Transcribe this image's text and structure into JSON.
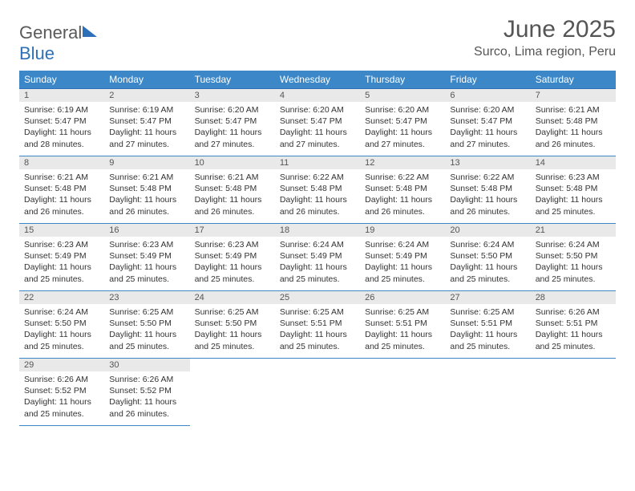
{
  "logo": {
    "word1": "General",
    "word2": "Blue"
  },
  "header": {
    "month_year": "June 2025",
    "location": "Surco, Lima region, Peru"
  },
  "colors": {
    "header_bg": "#3b87c8",
    "header_text": "#ffffff",
    "daynum_bg": "#e9e9e9",
    "border": "#3b87c8",
    "title_text": "#555555",
    "body_text": "#333333"
  },
  "weekdays": [
    "Sunday",
    "Monday",
    "Tuesday",
    "Wednesday",
    "Thursday",
    "Friday",
    "Saturday"
  ],
  "days": {
    "1": {
      "sunrise": "6:19 AM",
      "sunset": "5:47 PM",
      "daylight": "11 hours and 28 minutes."
    },
    "2": {
      "sunrise": "6:19 AM",
      "sunset": "5:47 PM",
      "daylight": "11 hours and 27 minutes."
    },
    "3": {
      "sunrise": "6:20 AM",
      "sunset": "5:47 PM",
      "daylight": "11 hours and 27 minutes."
    },
    "4": {
      "sunrise": "6:20 AM",
      "sunset": "5:47 PM",
      "daylight": "11 hours and 27 minutes."
    },
    "5": {
      "sunrise": "6:20 AM",
      "sunset": "5:47 PM",
      "daylight": "11 hours and 27 minutes."
    },
    "6": {
      "sunrise": "6:20 AM",
      "sunset": "5:47 PM",
      "daylight": "11 hours and 27 minutes."
    },
    "7": {
      "sunrise": "6:21 AM",
      "sunset": "5:48 PM",
      "daylight": "11 hours and 26 minutes."
    },
    "8": {
      "sunrise": "6:21 AM",
      "sunset": "5:48 PM",
      "daylight": "11 hours and 26 minutes."
    },
    "9": {
      "sunrise": "6:21 AM",
      "sunset": "5:48 PM",
      "daylight": "11 hours and 26 minutes."
    },
    "10": {
      "sunrise": "6:21 AM",
      "sunset": "5:48 PM",
      "daylight": "11 hours and 26 minutes."
    },
    "11": {
      "sunrise": "6:22 AM",
      "sunset": "5:48 PM",
      "daylight": "11 hours and 26 minutes."
    },
    "12": {
      "sunrise": "6:22 AM",
      "sunset": "5:48 PM",
      "daylight": "11 hours and 26 minutes."
    },
    "13": {
      "sunrise": "6:22 AM",
      "sunset": "5:48 PM",
      "daylight": "11 hours and 26 minutes."
    },
    "14": {
      "sunrise": "6:23 AM",
      "sunset": "5:48 PM",
      "daylight": "11 hours and 25 minutes."
    },
    "15": {
      "sunrise": "6:23 AM",
      "sunset": "5:49 PM",
      "daylight": "11 hours and 25 minutes."
    },
    "16": {
      "sunrise": "6:23 AM",
      "sunset": "5:49 PM",
      "daylight": "11 hours and 25 minutes."
    },
    "17": {
      "sunrise": "6:23 AM",
      "sunset": "5:49 PM",
      "daylight": "11 hours and 25 minutes."
    },
    "18": {
      "sunrise": "6:24 AM",
      "sunset": "5:49 PM",
      "daylight": "11 hours and 25 minutes."
    },
    "19": {
      "sunrise": "6:24 AM",
      "sunset": "5:49 PM",
      "daylight": "11 hours and 25 minutes."
    },
    "20": {
      "sunrise": "6:24 AM",
      "sunset": "5:50 PM",
      "daylight": "11 hours and 25 minutes."
    },
    "21": {
      "sunrise": "6:24 AM",
      "sunset": "5:50 PM",
      "daylight": "11 hours and 25 minutes."
    },
    "22": {
      "sunrise": "6:24 AM",
      "sunset": "5:50 PM",
      "daylight": "11 hours and 25 minutes."
    },
    "23": {
      "sunrise": "6:25 AM",
      "sunset": "5:50 PM",
      "daylight": "11 hours and 25 minutes."
    },
    "24": {
      "sunrise": "6:25 AM",
      "sunset": "5:50 PM",
      "daylight": "11 hours and 25 minutes."
    },
    "25": {
      "sunrise": "6:25 AM",
      "sunset": "5:51 PM",
      "daylight": "11 hours and 25 minutes."
    },
    "26": {
      "sunrise": "6:25 AM",
      "sunset": "5:51 PM",
      "daylight": "11 hours and 25 minutes."
    },
    "27": {
      "sunrise": "6:25 AM",
      "sunset": "5:51 PM",
      "daylight": "11 hours and 25 minutes."
    },
    "28": {
      "sunrise": "6:26 AM",
      "sunset": "5:51 PM",
      "daylight": "11 hours and 25 minutes."
    },
    "29": {
      "sunrise": "6:26 AM",
      "sunset": "5:52 PM",
      "daylight": "11 hours and 25 minutes."
    },
    "30": {
      "sunrise": "6:26 AM",
      "sunset": "5:52 PM",
      "daylight": "11 hours and 26 minutes."
    }
  },
  "labels": {
    "sunrise": "Sunrise: ",
    "sunset": "Sunset: ",
    "daylight": "Daylight: "
  },
  "layout": {
    "columns": 7,
    "start_weekday_index": 0,
    "total_days": 30
  }
}
